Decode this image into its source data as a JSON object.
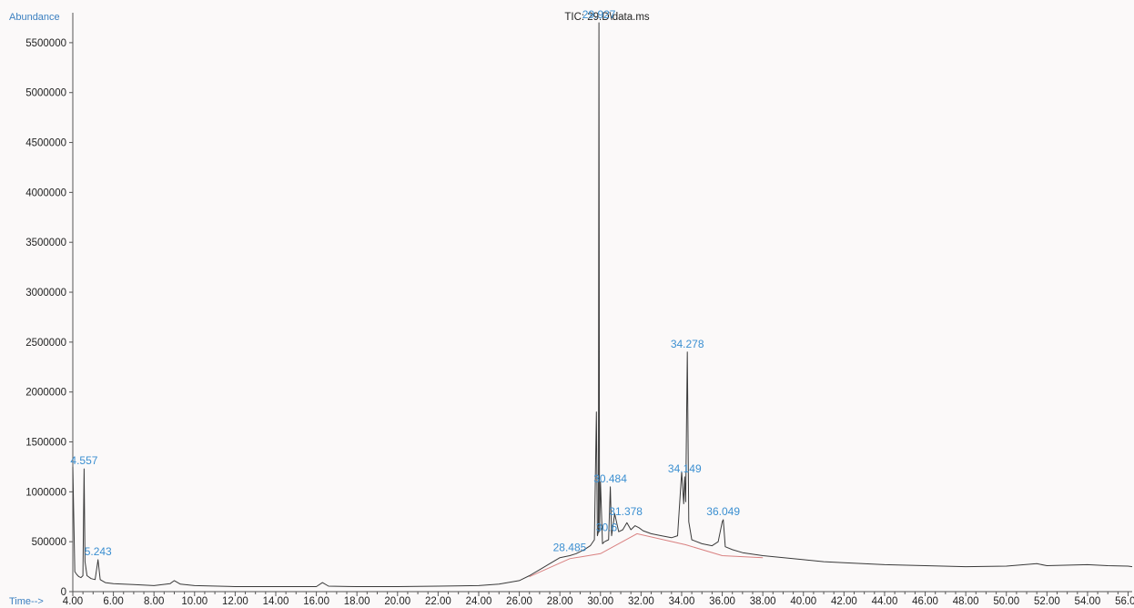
{
  "chart_data": {
    "type": "line",
    "title": "TIC: 29.D\\data.ms",
    "ylabel": "Abundance",
    "xlabel": "Time-->",
    "xlim": [
      4.0,
      56.2
    ],
    "ylim": [
      0,
      5800000
    ],
    "x_ticks": [
      "4.00",
      "6.00",
      "8.00",
      "10.00",
      "12.00",
      "14.00",
      "16.00",
      "18.00",
      "20.00",
      "22.00",
      "24.00",
      "26.00",
      "28.00",
      "30.00",
      "32.00",
      "34.00",
      "36.00",
      "38.00",
      "40.00",
      "42.00",
      "44.00",
      "46.00",
      "48.00",
      "50.00",
      "52.00",
      "54.00",
      "56.00"
    ],
    "y_ticks": [
      "0",
      "500000",
      "1000000",
      "1500000",
      "2000000",
      "2500000",
      "3000000",
      "3500000",
      "4000000",
      "4500000",
      "5000000",
      "5500000"
    ],
    "grid": false,
    "colors": {
      "trace": "#3a3a3a",
      "baseline": "#d98080",
      "label": "#3b8fd1",
      "axis": "#555555"
    },
    "series": [
      {
        "x": [
          4.0,
          4.1,
          4.2,
          4.3,
          4.4,
          4.5,
          4.557,
          4.6,
          4.7,
          4.9,
          5.1,
          5.243,
          5.35,
          5.6,
          6.0,
          7.0,
          8.0,
          8.8,
          9.0,
          9.3,
          10.0,
          12.0,
          14.0,
          16.0,
          16.3,
          16.6,
          18.0,
          20.0,
          22.0,
          24.0,
          25.0,
          26.0,
          26.5,
          27.0,
          27.5,
          28.0,
          28.485,
          28.8,
          29.2,
          29.5,
          29.7,
          29.8,
          29.85,
          29.9,
          29.927,
          29.95,
          30.0,
          30.1,
          30.2,
          30.4,
          30.484,
          30.55,
          30.7,
          30.9,
          31.1,
          31.3,
          31.5,
          31.7,
          31.9,
          32.1,
          32.5,
          33.0,
          33.5,
          33.8,
          34.0,
          34.1,
          34.149,
          34.2,
          34.278,
          34.35,
          34.5,
          35.0,
          35.5,
          35.8,
          36.0,
          36.049,
          36.15,
          36.5,
          37.0,
          38.0,
          40.0,
          41.0,
          42.0,
          44.0,
          46.0,
          48.0,
          50.0,
          51.5,
          52.0,
          54.0,
          55.0,
          56.0,
          56.2
        ],
        "y": [
          1250000,
          200000,
          170000,
          150000,
          140000,
          160000,
          1230000,
          300000,
          160000,
          130000,
          120000,
          320000,
          120000,
          90000,
          80000,
          70000,
          60000,
          80000,
          110000,
          75000,
          60000,
          50000,
          50000,
          50000,
          90000,
          55000,
          50000,
          50000,
          55000,
          60000,
          75000,
          110000,
          160000,
          220000,
          280000,
          340000,
          360000,
          380000,
          420000,
          460000,
          520000,
          1800000,
          560000,
          600000,
          5700000,
          600000,
          1100000,
          480000,
          500000,
          520000,
          1050000,
          560000,
          780000,
          600000,
          620000,
          690000,
          620000,
          660000,
          640000,
          610000,
          580000,
          560000,
          540000,
          560000,
          1200000,
          880000,
          1150000,
          900000,
          2400000,
          700000,
          520000,
          480000,
          460000,
          500000,
          700000,
          720000,
          450000,
          420000,
          390000,
          360000,
          320000,
          300000,
          290000,
          270000,
          260000,
          250000,
          255000,
          280000,
          260000,
          270000,
          260000,
          255000,
          250000
        ]
      }
    ],
    "baseline": {
      "x": [
        26.5,
        28.485,
        30.0,
        31.8,
        34.2,
        36.0,
        38.0
      ],
      "y": [
        150000,
        330000,
        380000,
        580000,
        470000,
        360000,
        340000
      ]
    },
    "peak_labels": [
      {
        "text": "4.557",
        "x": 4.557,
        "y": 1230000
      },
      {
        "text": "5.243",
        "x": 5.243,
        "y": 320000
      },
      {
        "text": "28.485",
        "x": 28.485,
        "y": 360000
      },
      {
        "text": "29.927",
        "x": 29.927,
        "y": 5700000
      },
      {
        "text": "30.484",
        "x": 30.484,
        "y": 1050000
      },
      {
        "text": "30.6",
        "x": 30.3,
        "y": 560000
      },
      {
        "text": "31.378",
        "x": 31.25,
        "y": 720000
      },
      {
        "text": "34.278",
        "x": 34.278,
        "y": 2400000
      },
      {
        "text": "34.149",
        "x": 34.149,
        "y": 1150000
      },
      {
        "text": "36.049",
        "x": 36.049,
        "y": 720000
      }
    ]
  }
}
